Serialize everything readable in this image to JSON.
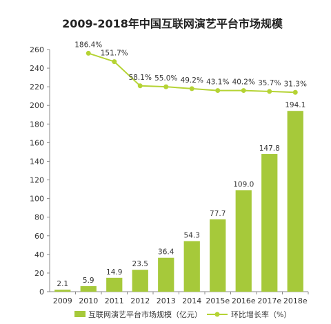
{
  "chart_data": {
    "type": "bar",
    "title": "2009-2018年中国互联网演艺平台市场规模",
    "categories": [
      "2009",
      "2010",
      "2011",
      "2012",
      "2013",
      "2014",
      "2015e",
      "2016e",
      "2017e",
      "2018e"
    ],
    "series": [
      {
        "name": "互联网演艺平台市场规模（亿元）",
        "type": "bar",
        "color": "#a6c93a",
        "values": [
          2.1,
          5.9,
          14.9,
          23.5,
          36.4,
          54.3,
          77.7,
          109.0,
          147.8,
          194.1
        ],
        "labels": [
          "2.1",
          "5.9",
          "14.9",
          "23.5",
          "36.4",
          "54.3",
          "77.7",
          "109.0",
          "147.8",
          "194.1"
        ]
      },
      {
        "name": "环比增长率（%）",
        "type": "line",
        "color": "#b5d334",
        "values": [
          null,
          186.4,
          151.7,
          58.1,
          55.0,
          49.2,
          43.1,
          40.2,
          35.7,
          31.3
        ],
        "labels": [
          "",
          "186.4%",
          "151.7%",
          "58.1%",
          "55.0%",
          "49.2%",
          "43.1%",
          "40.2%",
          "35.7%",
          "31.3%"
        ]
      }
    ],
    "y_ticks": [
      "0",
      "20",
      "40",
      "60",
      "80",
      "100",
      "120",
      "140",
      "160",
      "180",
      "200",
      "220",
      "240",
      "260"
    ],
    "ylim": [
      0,
      260
    ],
    "line_positions_on_axis": [
      null,
      256,
      247,
      221,
      220,
      218,
      216,
      216,
      215,
      214
    ],
    "grid": false,
    "legend": "bottom"
  }
}
